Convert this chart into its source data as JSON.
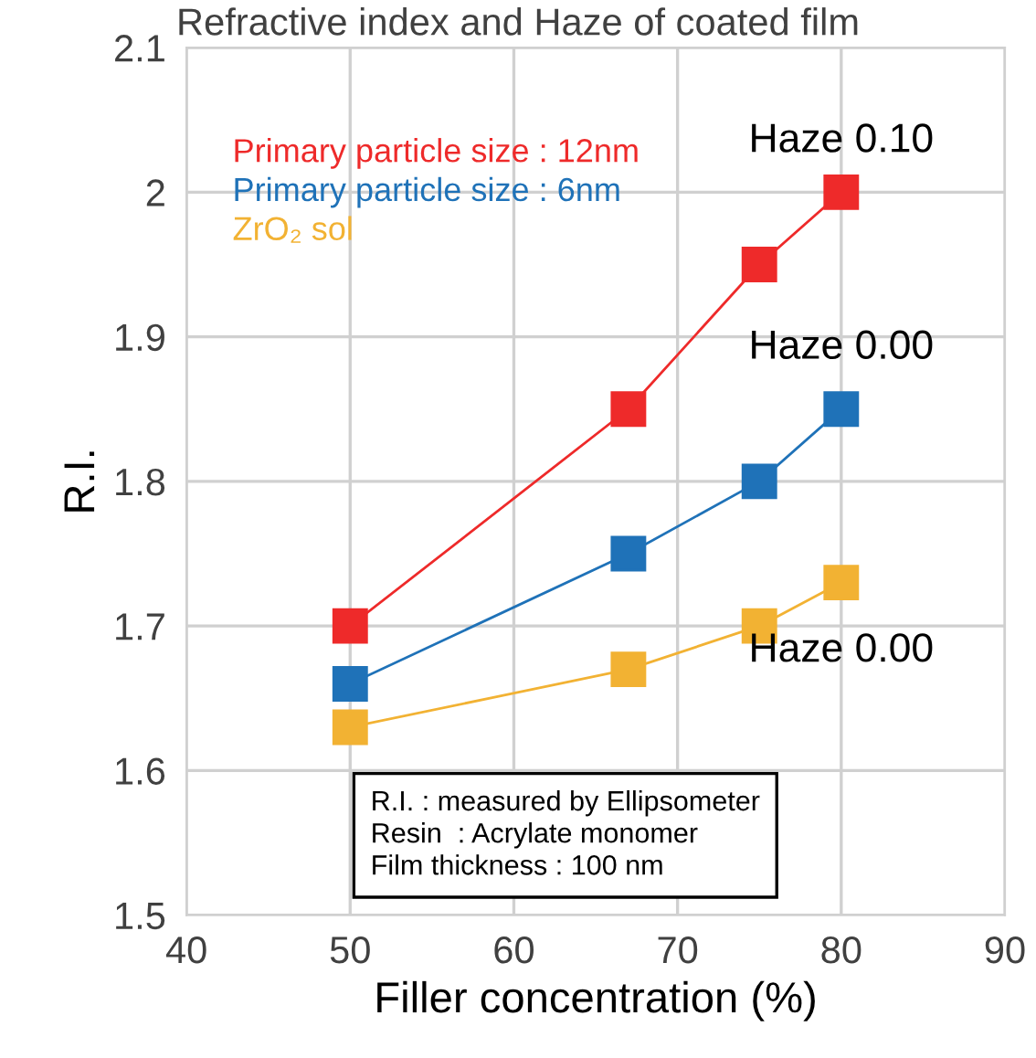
{
  "chart_data": {
    "type": "line",
    "title": "Refractive index and Haze of coated film",
    "xlabel": "Filler concentration (%)",
    "ylabel": "R.I.",
    "x": [
      50,
      67,
      75,
      80
    ],
    "series": [
      {
        "name": "Primary particle size : 12nm",
        "color": "#ee2a2a",
        "values": [
          1.7,
          1.85,
          1.95,
          2.0
        ]
      },
      {
        "name": "Primary particle size : 6nm",
        "color": "#1f72b8",
        "values": [
          1.66,
          1.75,
          1.8,
          1.85
        ]
      },
      {
        "name": "ZrO₂ sol",
        "color": "#f2b233",
        "values": [
          1.63,
          1.67,
          1.7,
          1.73
        ]
      }
    ],
    "xlim": [
      40,
      90
    ],
    "xticks": [
      40,
      50,
      60,
      70,
      80,
      90
    ],
    "ylim": [
      1.5,
      2.1
    ],
    "yticks": [
      1.5,
      1.6,
      1.7,
      1.8,
      1.9,
      2,
      2.1
    ],
    "grid": true,
    "legend": "top left",
    "marker": "square",
    "line_style": "solid",
    "annotations": [
      "Haze 0.10",
      "Haze 0.00",
      "Haze 0.00",
      "R.I. : measured by Ellipsometer\nResin  : Acrylate monomer\nFilm thickness : 100 nm"
    ]
  }
}
